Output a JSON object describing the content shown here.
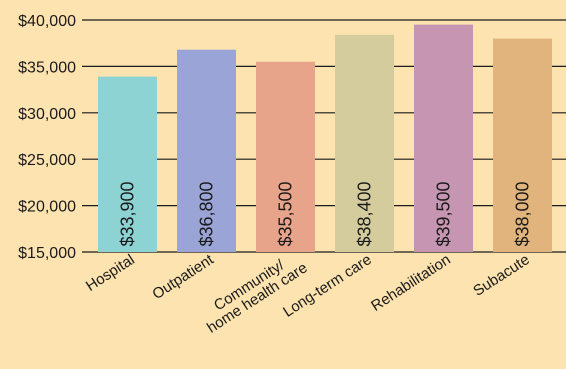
{
  "chart_data": {
    "type": "bar",
    "title": "",
    "xlabel": "",
    "ylabel": "",
    "ylim": [
      15000,
      40000
    ],
    "yticks": [
      15000,
      20000,
      25000,
      30000,
      35000,
      40000
    ],
    "ytick_labels": [
      "$15,000",
      "$20,000",
      "$25,000",
      "$30,000",
      "$35,000",
      "$40,000"
    ],
    "grid": "horizontal",
    "legend": "none",
    "categories": [
      [
        "Hospital"
      ],
      [
        "Outpatient"
      ],
      [
        "Community/",
        "home health care"
      ],
      [
        "Long-term care"
      ],
      [
        "Rehabilitation"
      ],
      [
        "Subacute"
      ]
    ],
    "values": [
      33900,
      36800,
      35500,
      38400,
      39500,
      38000
    ],
    "value_labels": [
      "$33,900",
      "$36,800",
      "$35,500",
      "$38,400",
      "$39,500",
      "$38,000"
    ],
    "colors": [
      "#8ed3d4",
      "#9aa4d6",
      "#e8a48a",
      "#d4cc9c",
      "#c595b2",
      "#e2b47d"
    ],
    "background": "#fde3b0",
    "gridline_color": "#1a1a1a"
  }
}
